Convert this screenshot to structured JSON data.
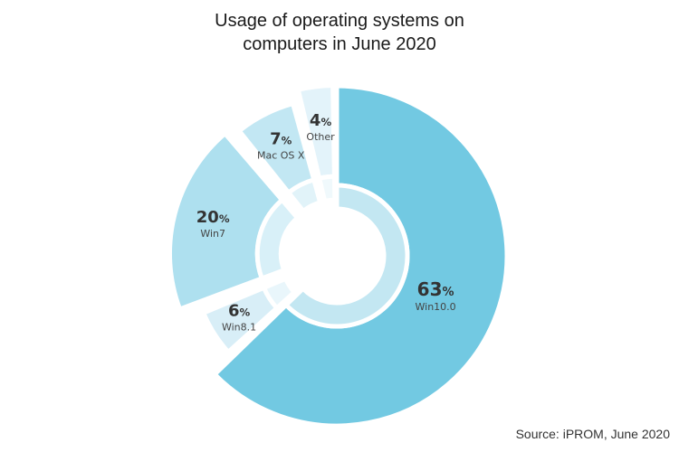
{
  "chart_data": {
    "type": "pie",
    "title_lines": [
      "Usage of operating systems on",
      "computers in June 2020"
    ],
    "source": "Source: iPROM, June 2020",
    "unit": "%",
    "slices": [
      {
        "label": "Win10.0",
        "value": 63,
        "color": "#72c9e2",
        "inner_color": "#c3e7f2"
      },
      {
        "label": "Win8.1",
        "value": 6,
        "color": "#d8eef7",
        "inner_color": "#e9f6fb"
      },
      {
        "label": "Win7",
        "value": 20,
        "color": "#aee0ef",
        "inner_color": "#d8f0f8"
      },
      {
        "label": "Mac OS X",
        "value": 7,
        "color": "#c2e7f3",
        "inner_color": "#e1f3f9"
      },
      {
        "label": "Other",
        "value": 4,
        "color": "#e3f3fa",
        "inner_color": "#f0f9fc"
      }
    ],
    "legend": "none",
    "grid": false
  }
}
